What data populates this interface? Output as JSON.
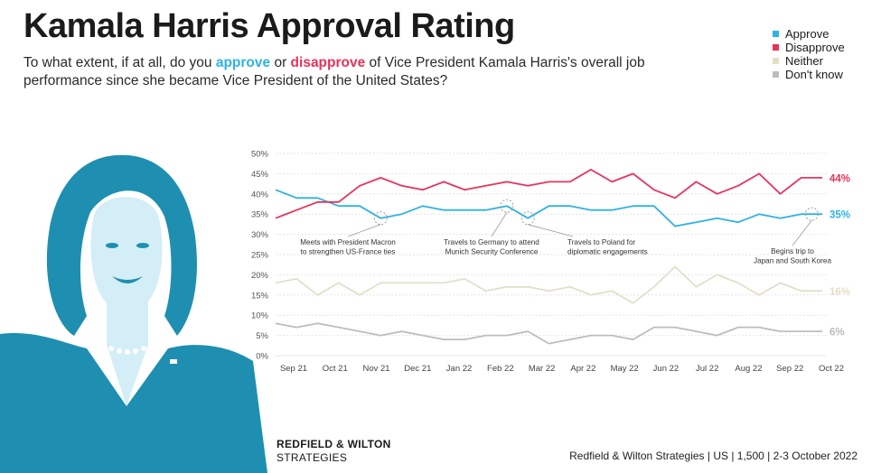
{
  "title": "Kamala Harris Approval Rating",
  "subtitle": {
    "part1": "To what extent, if at all, do you ",
    "approve": "approve",
    "part2": " or ",
    "disapprove": "disapprove",
    "part3": " of Vice President Kamala Harris's overall job performance since she became Vice President of the United States?"
  },
  "brand": {
    "line1": "REDFIELD & WILTON",
    "line2": "STRATEGIES"
  },
  "source": "Redfield & Wilton Strategies | US | 1,500 | 2-3 October 2022",
  "colors": {
    "approve": "#2fb2e4",
    "disapprove": "#e8335a",
    "neither": "#e2dfc8",
    "dont_know": "#bdbdbd",
    "portrait": "#1e8fb0"
  },
  "chart_data": {
    "type": "line",
    "title": "Kamala Harris Approval Rating",
    "ylim": [
      0,
      50
    ],
    "yticks": [
      "0%",
      "5%",
      "10%",
      "15%",
      "20%",
      "25%",
      "30%",
      "35%",
      "40%",
      "45%",
      "50%"
    ],
    "xlabels": [
      "Sep 21",
      "Oct 21",
      "Nov 21",
      "Dec 21",
      "Jan 22",
      "Feb 22",
      "Mar 22",
      "Apr 22",
      "May 22",
      "Jun 22",
      "Jul 22",
      "Aug 22",
      "Sep 22",
      "Oct 22"
    ],
    "x_range": [
      0,
      26
    ],
    "series": [
      {
        "key": "approve",
        "name": "Approve",
        "color": "#2fb2e4",
        "end_label": "35%",
        "x": [
          0,
          1,
          2,
          3,
          4,
          5,
          6,
          7,
          8,
          9,
          10,
          11,
          12,
          13,
          14,
          15,
          16,
          17,
          18,
          19,
          20,
          21,
          22,
          23,
          24,
          25,
          26
        ],
        "values": [
          41,
          39,
          39,
          37,
          37,
          34,
          35,
          37,
          36,
          36,
          36,
          37,
          34,
          37,
          37,
          36,
          36,
          37,
          37,
          32,
          33,
          34,
          33,
          35,
          34,
          35,
          35
        ]
      },
      {
        "key": "disapprove",
        "name": "Disapprove",
        "color": "#e8335a",
        "end_label": "44%",
        "x": [
          0,
          1,
          2,
          3,
          4,
          5,
          6,
          7,
          8,
          9,
          10,
          11,
          12,
          13,
          14,
          15,
          16,
          17,
          18,
          19,
          20,
          21,
          22,
          23,
          24,
          25,
          26
        ],
        "values": [
          34,
          36,
          38,
          38,
          42,
          44,
          42,
          41,
          43,
          41,
          42,
          43,
          42,
          43,
          43,
          46,
          43,
          45,
          41,
          39,
          43,
          40,
          42,
          45,
          40,
          44,
          44
        ]
      },
      {
        "key": "neither",
        "name": "Neither",
        "color": "#e2dfc8",
        "end_label": "16%",
        "x": [
          0,
          1,
          2,
          3,
          4,
          5,
          6,
          7,
          8,
          9,
          10,
          11,
          12,
          13,
          14,
          15,
          16,
          17,
          18,
          19,
          20,
          21,
          22,
          23,
          24,
          25,
          26
        ],
        "values": [
          18,
          19,
          15,
          18,
          15,
          18,
          18,
          18,
          18,
          19,
          16,
          17,
          17,
          16,
          17,
          15,
          16,
          13,
          17,
          22,
          17,
          20,
          18,
          15,
          18,
          16,
          16
        ]
      },
      {
        "key": "dont_know",
        "name": "Don't know",
        "color": "#bdbdbd",
        "end_label": "6%",
        "x": [
          0,
          1,
          2,
          3,
          4,
          5,
          6,
          7,
          8,
          9,
          10,
          11,
          12,
          13,
          14,
          15,
          16,
          17,
          18,
          19,
          20,
          21,
          22,
          23,
          24,
          25,
          26
        ],
        "values": [
          8,
          7,
          8,
          7,
          6,
          5,
          6,
          5,
          4,
          4,
          5,
          5,
          6,
          3,
          4,
          5,
          5,
          4,
          7,
          7,
          6,
          5,
          7,
          7,
          6,
          6,
          6
        ]
      }
    ],
    "annotations": [
      {
        "x": 5,
        "series": "approve",
        "text_lines": [
          "Meets with President Macron",
          "to strengthen US-France ties"
        ],
        "anchor": "middle"
      },
      {
        "x": 11,
        "series": "approve",
        "text_lines": [
          "Travels to Germany to attend",
          "Munich Security Conference"
        ],
        "anchor": "middle"
      },
      {
        "x": 12,
        "series": "approve",
        "text_lines": [
          "Travels to Poland for",
          "diplomatic engagements"
        ],
        "anchor": "start"
      },
      {
        "x": 25.5,
        "series": "approve",
        "text_lines": [
          "Begins trip to",
          "Japan and South Korea"
        ],
        "anchor": "middle"
      }
    ]
  }
}
